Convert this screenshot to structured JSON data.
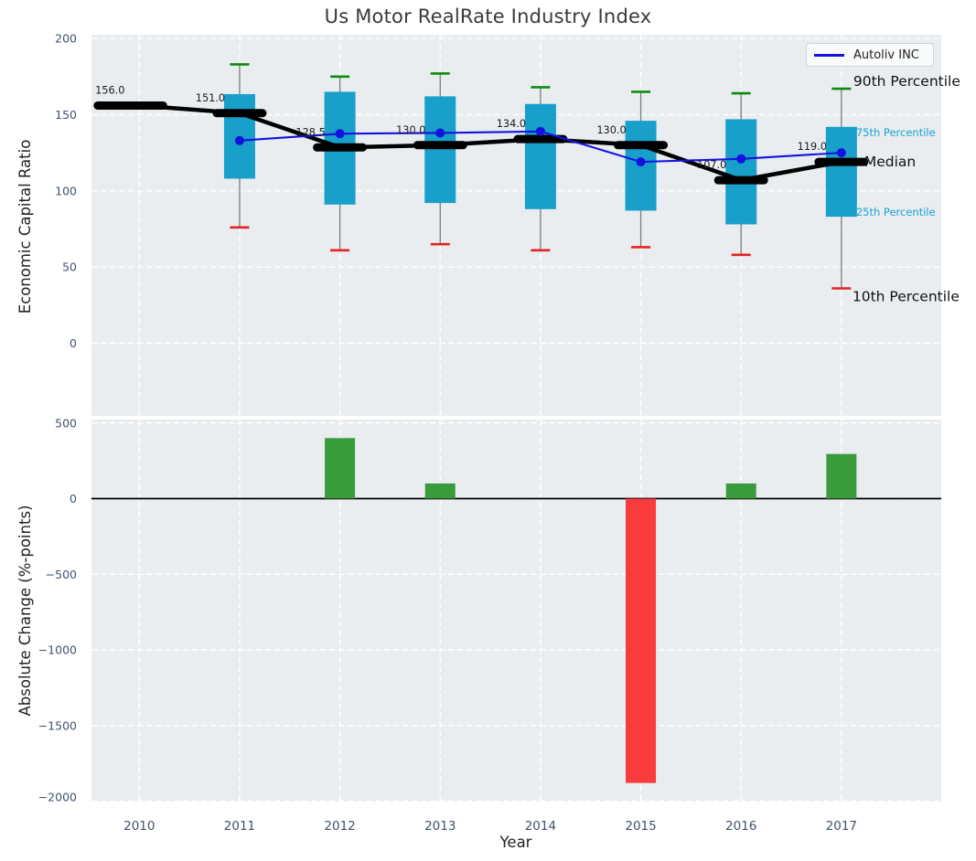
{
  "title": "Us Motor RealRate Industry Index",
  "legend": {
    "label": "Autoliv INC"
  },
  "colors": {
    "plot_bg": "#e9edf0",
    "grid": "#ffffff",
    "box_fill": "#189fca",
    "whisker": "#7a7a7a",
    "cap_90th": "#0c8c0c",
    "cap_10th": "#e52222",
    "median_line": "#000000",
    "company_line": "#1512e0",
    "bar_positive": "#3a9b3c",
    "bar_negative": "#f93b3b",
    "tick_label": "#3e536e",
    "value_label": "#1c1c1c",
    "annotation_dark": "#111111",
    "annotation_cyan": "#1ba3d0"
  },
  "chart_data": [
    {
      "type": "box",
      "title": "Us Motor RealRate Industry Index",
      "ylabel": "Economic Capital Ratio",
      "categories": [
        "2010",
        "2011",
        "2012",
        "2013",
        "2014",
        "2015",
        "2016",
        "2017"
      ],
      "ylim": [
        -48,
        202
      ],
      "yticks": [
        200,
        150,
        100,
        50,
        0
      ],
      "ytick_labels": [
        "200",
        "150",
        "100",
        "50",
        "0"
      ],
      "grid": true,
      "legend": {
        "label": "Autoliv INC",
        "position": "upper right"
      },
      "series": [
        {
          "name": "Median",
          "values": [
            156,
            151,
            128.5,
            130,
            134,
            130,
            107,
            119
          ]
        },
        {
          "name": "25th Percentile",
          "values": [
            null,
            108,
            91,
            92,
            88,
            87,
            78,
            83
          ]
        },
        {
          "name": "75th Percentile",
          "values": [
            null,
            163.5,
            165,
            162,
            157,
            146,
            147,
            142
          ]
        },
        {
          "name": "10th Percentile",
          "values": [
            null,
            76,
            61,
            65,
            61,
            63,
            58,
            36
          ]
        },
        {
          "name": "90th Percentile",
          "values": [
            null,
            183,
            175,
            177,
            168,
            165,
            164,
            167
          ]
        },
        {
          "name": "Autoliv INC",
          "values": [
            null,
            133,
            137.5,
            138,
            139,
            119,
            121,
            125
          ]
        }
      ],
      "median_value_labels": [
        "156.0",
        "151.0",
        "128.5",
        "130.0",
        "134.0",
        "130.0",
        "107.0",
        "119.0"
      ],
      "percentile_annotations": [
        {
          "key": "p90",
          "label": "90th Percentile",
          "style": "large"
        },
        {
          "key": "p75",
          "label": "75th Percentile",
          "style": "small"
        },
        {
          "key": "median",
          "label": "Median",
          "style": "large"
        },
        {
          "key": "p25",
          "label": "25th Percentile",
          "style": "small"
        },
        {
          "key": "p10",
          "label": "10th Percentile",
          "style": "large"
        }
      ]
    },
    {
      "type": "bar",
      "ylabel": "Absolute Change (%-points)",
      "xlabel": "Year",
      "categories": [
        "2010",
        "2011",
        "2012",
        "2013",
        "2014",
        "2015",
        "2016",
        "2017"
      ],
      "values": [
        0,
        0,
        400,
        100,
        0,
        -1880,
        100,
        295
      ],
      "ylim": [
        -2050,
        540
      ],
      "yticks": [
        500,
        0,
        -500,
        -1000,
        -1500,
        -2000
      ],
      "ytick_labels": [
        "500",
        "0",
        "−500",
        "−1000",
        "−1500",
        "−2000"
      ],
      "grid": true,
      "zero_line": true
    }
  ]
}
